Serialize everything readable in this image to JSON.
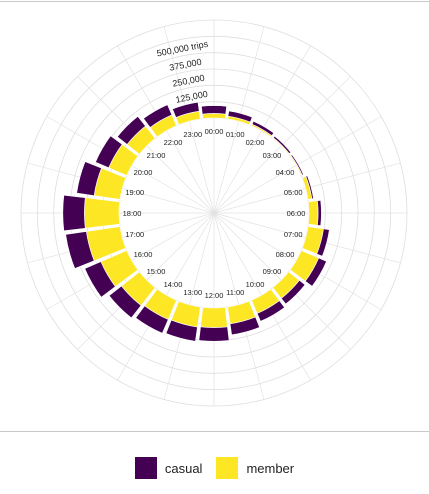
{
  "chart_data": {
    "type": "bar",
    "coord": "polar",
    "stacked": true,
    "title": "",
    "xlabel": "",
    "ylabel": "",
    "ylim": [
      0,
      750000
    ],
    "radial_ticks": [
      125000,
      250000,
      375000,
      500000
    ],
    "radial_tick_labels": [
      "125,000",
      "250,000",
      "375,000",
      "500,000 trips"
    ],
    "categories": [
      "00:00",
      "01:00",
      "02:00",
      "03:00",
      "04:00",
      "05:00",
      "06:00",
      "07:00",
      "08:00",
      "09:00",
      "10:00",
      "11:00",
      "12:00",
      "13:00",
      "14:00",
      "15:00",
      "16:00",
      "17:00",
      "18:00",
      "19:00",
      "20:00",
      "21:00",
      "22:00",
      "23:00"
    ],
    "series": [
      {
        "name": "casual",
        "color": "#440154",
        "values": [
          60000,
          40000,
          25000,
          15000,
          10000,
          12000,
          25000,
          45000,
          65000,
          55000,
          65000,
          85000,
          105000,
          110000,
          115000,
          120000,
          135000,
          160000,
          165000,
          135000,
          110000,
          95000,
          85000,
          70000
        ]
      },
      {
        "name": "member",
        "color": "#FDE725",
        "values": [
          35000,
          22000,
          12000,
          7000,
          8000,
          30000,
          70000,
          120000,
          145000,
          105000,
          110000,
          130000,
          150000,
          155000,
          160000,
          175000,
          215000,
          260000,
          265000,
          200000,
          150000,
          120000,
          90000,
          60000
        ]
      }
    ],
    "grid": true,
    "legend_position": "bottom"
  }
}
